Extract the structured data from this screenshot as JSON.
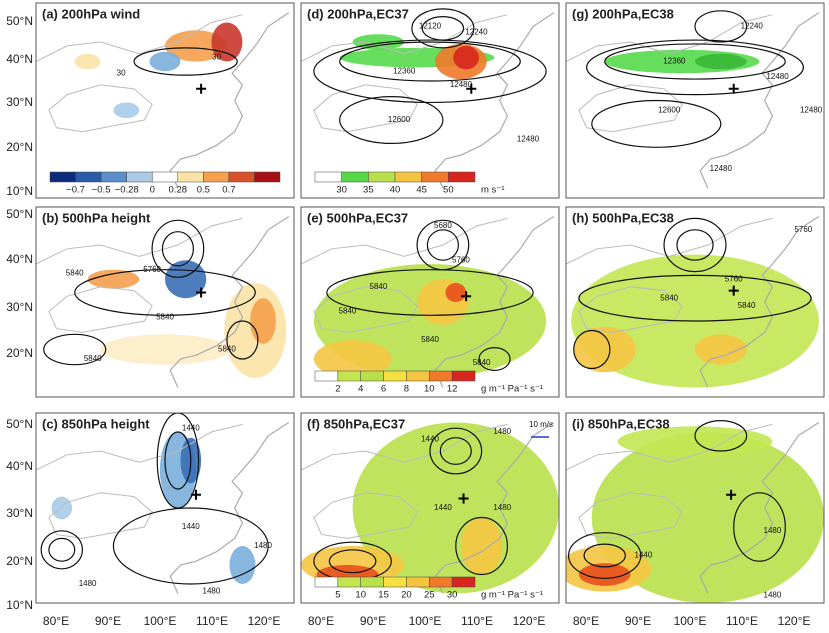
{
  "latitude_labels": [
    "50°N",
    "40°N",
    "30°N",
    "20°N",
    "10°N"
  ],
  "longitude_labels": [
    "80°E",
    "90°E",
    "100°E",
    "110°E",
    "120°E"
  ],
  "panels": [
    {
      "title": "(a) 200hPa wind",
      "contour_labels": [
        "30",
        "30"
      ],
      "colorbar": {
        "ticks": [
          "−0.7",
          "−0.5",
          "−0.28",
          "0",
          "0.28",
          "0.5",
          "0.7"
        ]
      }
    },
    {
      "title": "(b) 500hPa height",
      "contour_labels": [
        "5840",
        "5760",
        "5840",
        "5840",
        "5840"
      ]
    },
    {
      "title": "(c) 850hPa height",
      "contour_labels": [
        "1440",
        "1440",
        "1480",
        "1480",
        "1480"
      ]
    },
    {
      "title": "(d) 200hPa,EC37",
      "contour_labels": [
        "12120",
        "12240",
        "12360",
        "12480",
        "12600",
        "12480"
      ],
      "colorbar": {
        "ticks": [
          "30",
          "35",
          "40",
          "45",
          "50"
        ],
        "unit": "m s⁻¹"
      }
    },
    {
      "title": "(e) 500hPa,EC37",
      "contour_labels": [
        "5680",
        "5760",
        "5840",
        "5840",
        "5840",
        "5840"
      ],
      "colorbar": {
        "ticks": [
          "2",
          "4",
          "6",
          "8",
          "10",
          "12"
        ],
        "unit": "g m⁻¹ Pa⁻¹ s⁻¹"
      }
    },
    {
      "title": "(f) 850hPa,EC37",
      "contour_labels": [
        "1440",
        "1440",
        "1480",
        "1480"
      ],
      "colorbar": {
        "ticks": [
          "5",
          "10",
          "15",
          "20",
          "25",
          "30"
        ],
        "unit": "g m⁻¹ Pa⁻¹ s⁻¹"
      },
      "vector_reference": "10 m/s"
    },
    {
      "title": "(g) 200hPa,EC38",
      "contour_labels": [
        "12240",
        "12360",
        "12480",
        "12600",
        "12480",
        "12480"
      ]
    },
    {
      "title": "(h) 500hPa,EC38",
      "contour_labels": [
        "5760",
        "5840",
        "5840",
        "5760"
      ]
    },
    {
      "title": "(i) 850hPa,EC38",
      "contour_labels": [
        "1440",
        "1480",
        "1480"
      ]
    }
  ]
}
